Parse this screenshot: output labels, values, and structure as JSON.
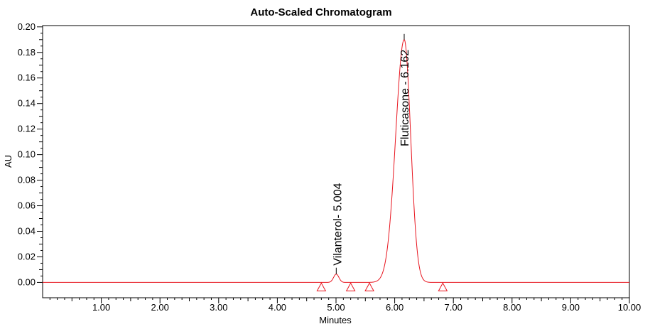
{
  "chart_data": {
    "type": "line",
    "title": "Auto-Scaled Chromatogram",
    "xlabel": "Minutes",
    "ylabel": "AU",
    "xlim": [
      0,
      10
    ],
    "ylim": [
      -0.012,
      0.201
    ],
    "x_ticks": [
      "1.00",
      "2.00",
      "3.00",
      "4.00",
      "5.00",
      "6.00",
      "7.00",
      "8.00",
      "9.00",
      "10.00"
    ],
    "y_ticks": [
      "0.00",
      "0.02",
      "0.04",
      "0.06",
      "0.08",
      "0.10",
      "0.12",
      "0.14",
      "0.16",
      "0.18",
      "0.20"
    ],
    "grid": false,
    "series": [
      {
        "color": "#e8141e",
        "baseline": 0,
        "peaks": [
          {
            "label": "Vilanterol- 5.004",
            "retention_time": 5.004,
            "height": 0.0065
          },
          {
            "label": "Fluticasone - 6.162",
            "retention_time": 6.162,
            "height": 0.19
          }
        ]
      }
    ],
    "integration_markers": [
      4.75,
      5.25,
      5.57,
      6.82
    ]
  }
}
